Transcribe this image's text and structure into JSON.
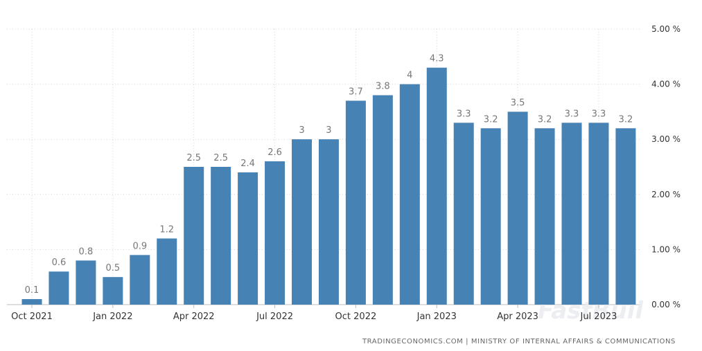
{
  "source": "TRADINGECONOMICS.COM | MINISTRY OF INTERNAL AFFAIRS & COMMUNICATIONS",
  "watermark": "FastBull",
  "colors": {
    "bar": "#4682b4",
    "grid": "#d6d6d6",
    "label": "#777777"
  },
  "chart_data": {
    "type": "bar",
    "title": "",
    "xlabel": "",
    "ylabel": "",
    "categories": [
      "Oct 2021",
      "Nov 2021",
      "Dec 2021",
      "Jan 2022",
      "Feb 2022",
      "Mar 2022",
      "Apr 2022",
      "May 2022",
      "Jun 2022",
      "Jul 2022",
      "Aug 2022",
      "Sep 2022",
      "Oct 2022",
      "Nov 2022",
      "Dec 2022",
      "Jan 2023",
      "Feb 2023",
      "Mar 2023",
      "Apr 2023",
      "May 2023",
      "Jun 2023",
      "Jul 2023",
      "Aug 2023"
    ],
    "values": [
      0.1,
      0.6,
      0.8,
      0.5,
      0.9,
      1.2,
      2.5,
      2.5,
      2.4,
      2.6,
      3,
      3,
      3.7,
      3.8,
      4,
      4.3,
      3.3,
      3.2,
      3.5,
      3.2,
      3.3,
      3.3,
      3.2
    ],
    "value_labels": [
      "0.1",
      "0.6",
      "0.8",
      "0.5",
      "0.9",
      "1.2",
      "2.5",
      "2.5",
      "2.4",
      "2.6",
      "3",
      "3",
      "3.7",
      "3.8",
      "4",
      "4.3",
      "3.3",
      "3.2",
      "3.5",
      "3.2",
      "3.3",
      "3.3",
      "3.2"
    ],
    "x_ticks": [
      {
        "index": 0,
        "label": "Oct 2021"
      },
      {
        "index": 3,
        "label": "Jan 2022"
      },
      {
        "index": 6,
        "label": "Apr 2022"
      },
      {
        "index": 9,
        "label": "Jul 2022"
      },
      {
        "index": 12,
        "label": "Oct 2022"
      },
      {
        "index": 15,
        "label": "Jan 2023"
      },
      {
        "index": 18,
        "label": "Apr 2023"
      },
      {
        "index": 21,
        "label": "Jul 2023"
      }
    ],
    "y_ticks": [
      {
        "value": 0,
        "label": "0.00 %"
      },
      {
        "value": 1,
        "label": "1.00 %"
      },
      {
        "value": 2,
        "label": "2.00 %"
      },
      {
        "value": 3,
        "label": "3.00 %"
      },
      {
        "value": 4,
        "label": "4.00 %"
      },
      {
        "value": 5,
        "label": "5.00 %"
      }
    ],
    "ylim": [
      0,
      5
    ],
    "y_axis_position": "right",
    "grid": true
  }
}
